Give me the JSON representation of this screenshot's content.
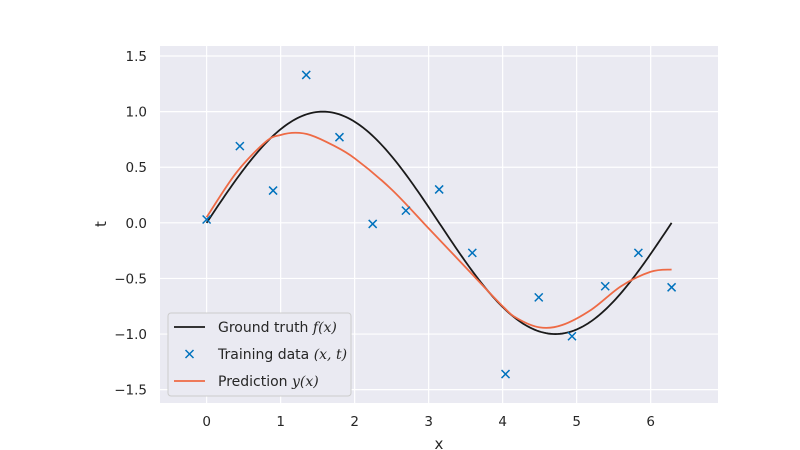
{
  "colors": {
    "plot_background": "#EAEAF2",
    "grid": "#FFFFFF",
    "ground_truth": "#1A1A1A",
    "training": "#0072BD",
    "prediction": "#EE6A45",
    "legend_border": "#CCCCCC",
    "text": "#262626"
  },
  "chart_data": {
    "type": "line",
    "title": "",
    "xlabel": "x",
    "ylabel": "t",
    "xlim": [
      -0.63,
      6.91
    ],
    "ylim": [
      -1.62,
      1.59
    ],
    "xticks": [
      0,
      1,
      2,
      3,
      4,
      5,
      6
    ],
    "xtick_labels": [
      "0",
      "1",
      "2",
      "3",
      "4",
      "5",
      "6"
    ],
    "yticks": [
      -1.5,
      -1.0,
      -0.5,
      0.0,
      0.5,
      1.0,
      1.5
    ],
    "ytick_labels": [
      "−1.5",
      "−1.0",
      "−0.5",
      "0.0",
      "0.5",
      "1.0",
      "1.5"
    ],
    "grid": true,
    "legend_location": "lower-left",
    "series": [
      {
        "name": "Ground truth",
        "math": "f(x)",
        "kind": "line",
        "function": "sin",
        "x_range": [
          0,
          6.283
        ],
        "color": "#1A1A1A"
      },
      {
        "name": "Training data",
        "math": "(x, t)",
        "kind": "scatter",
        "marker": "x",
        "color": "#0072BD",
        "x": [
          0.0,
          0.449,
          0.898,
          1.346,
          1.795,
          2.244,
          2.693,
          3.142,
          3.59,
          4.039,
          4.488,
          4.937,
          5.386,
          5.834,
          6.283
        ],
        "y": [
          0.03,
          0.69,
          0.29,
          1.33,
          0.77,
          -0.01,
          0.11,
          0.3,
          -0.27,
          -1.36,
          -0.67,
          -1.02,
          -0.57,
          -0.27,
          -0.58
        ]
      },
      {
        "name": "Prediction",
        "math": "y(x)",
        "kind": "line",
        "color": "#EE6A45",
        "x": [
          0.0,
          0.4,
          0.8,
          1.0,
          1.2,
          1.4,
          1.7,
          2.0,
          2.5,
          3.0,
          3.5,
          4.0,
          4.2,
          4.5,
          4.8,
          5.2,
          5.6,
          6.0,
          6.283
        ],
        "y": [
          0.05,
          0.45,
          0.73,
          0.79,
          0.81,
          0.79,
          0.7,
          0.58,
          0.3,
          -0.05,
          -0.4,
          -0.75,
          -0.86,
          -0.94,
          -0.92,
          -0.78,
          -0.57,
          -0.44,
          -0.42
        ]
      }
    ]
  }
}
